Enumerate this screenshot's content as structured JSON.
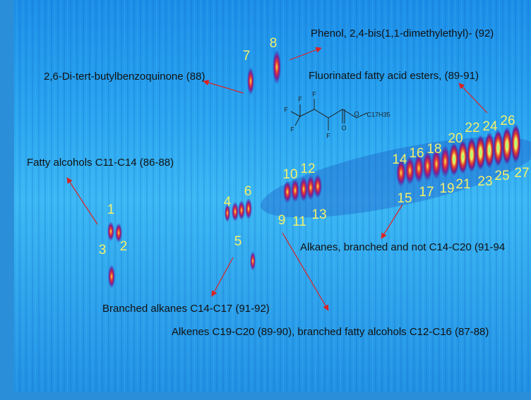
{
  "annotations": [
    "Phenol, 2,4-bis(1,1-dimethylethyl)- (92)",
    "2,6-Di-tert-butylbenzoquinone (88)",
    "Fluorinated fatty acid esters, (89-91)",
    "Fatty alcohols C11-C14 (86-88)",
    "Alkanes, branched and not C14-C20 (91-94",
    "Branched alkanes C14-C17 (91-92)",
    "Alkenes C19-C20 (89-90), branched fatty alcohols C12-C16 (87-88)"
  ],
  "peaks": [
    "1",
    "2",
    "3",
    "4",
    "5",
    "6",
    "7",
    "8",
    "9",
    "10",
    "11",
    "12",
    "13",
    "14",
    "15",
    "16",
    "17",
    "18",
    "19",
    "20",
    "21",
    "22",
    "23",
    "24",
    "25",
    "26",
    "27"
  ],
  "structure": {
    "labels": [
      "F",
      "F",
      "F",
      "F",
      "F",
      "O",
      "O"
    ],
    "chain": "C17H35"
  }
}
